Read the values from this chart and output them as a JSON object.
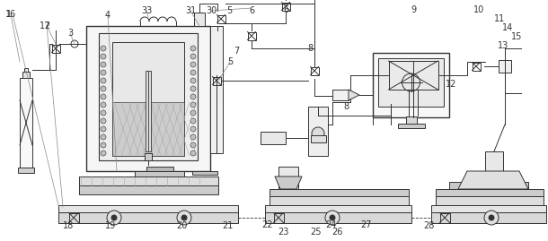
{
  "bg_color": "#ffffff",
  "lc": "#666666",
  "dc": "#333333",
  "fc_light": "#f0f0f0",
  "fc_gray": "#d8d8d8",
  "fc_dark": "#aaaaaa",
  "label_fs": 7,
  "fig_w": 6.1,
  "fig_h": 2.69,
  "dpi": 100
}
